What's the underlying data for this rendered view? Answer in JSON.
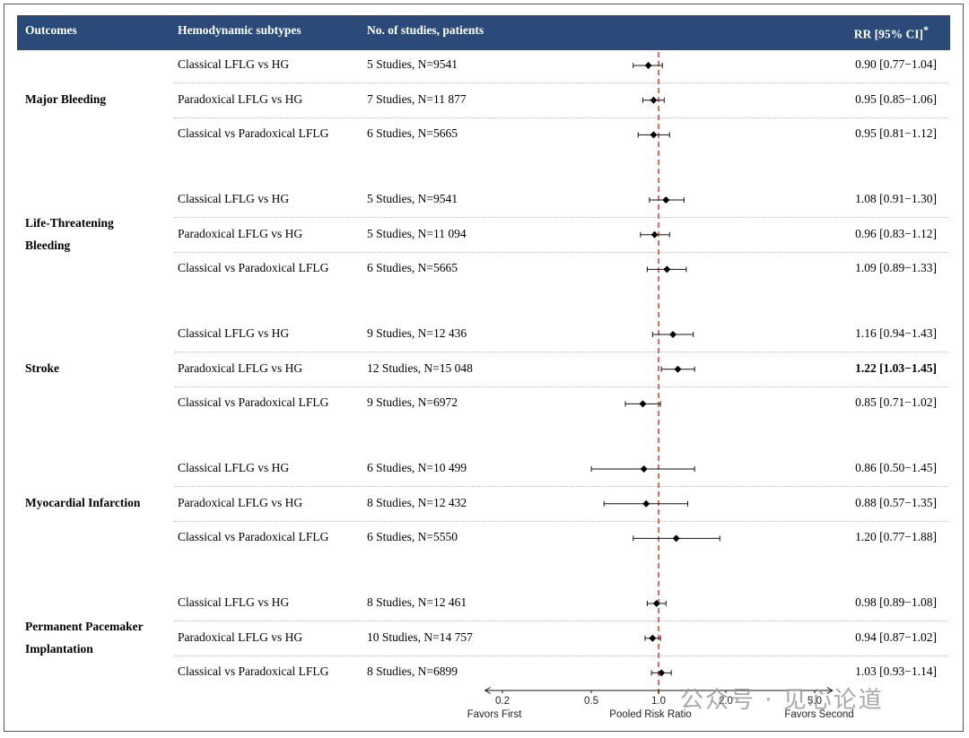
{
  "header": {
    "col_outcomes": "Outcomes",
    "col_subtypes": "Hemodynamic subtypes",
    "col_studies": "No. of studies, patients",
    "col_rr": "RR [95% CI]",
    "col_rr_mark": "*"
  },
  "groups": [
    {
      "outcome_lines": [
        "Major Bleeding"
      ]
    },
    {
      "outcome_lines": [
        "Life-Threatening",
        "Bleeding"
      ]
    },
    {
      "outcome_lines": [
        "Stroke"
      ]
    },
    {
      "outcome_lines": [
        "Myocardial Infarction"
      ]
    },
    {
      "outcome_lines": [
        "Permanent Pacemaker",
        "Implantation"
      ]
    }
  ],
  "rows": [
    {
      "subtype": "Classical LFLG vs HG",
      "studies": "5 Studies, N=9541",
      "rr_text": "0.90 [0.77−1.04]"
    },
    {
      "subtype": "Paradoxical LFLG vs HG",
      "studies": "7 Studies, N=11 877",
      "rr_text": "0.95 [0.85−1.06]"
    },
    {
      "subtype": "Classical vs Paradoxical LFLG",
      "studies": "6 Studies, N=5665",
      "rr_text": "0.95 [0.81−1.12]"
    },
    {
      "subtype": "Classical LFLG vs HG",
      "studies": "5 Studies, N=9541",
      "rr_text": "1.08 [0.91−1.30]"
    },
    {
      "subtype": "Paradoxical LFLG vs HG",
      "studies": "5 Studies, N=11 094",
      "rr_text": "0.96 [0.83−1.12]"
    },
    {
      "subtype": "Classical vs Paradoxical LFLG",
      "studies": "6 Studies, N=5665",
      "rr_text": "1.09 [0.89−1.33]"
    },
    {
      "subtype": "Classical LFLG vs HG",
      "studies": "9 Studies, N=12 436",
      "rr_text": "1.16 [0.94−1.43]"
    },
    {
      "subtype": "Paradoxical LFLG vs HG",
      "studies": "12 Studies, N=15 048",
      "rr_text": "1.22 [1.03−1.45]",
      "bold": true
    },
    {
      "subtype": "Classical vs Paradoxical LFLG",
      "studies": "9 Studies, N=6972",
      "rr_text": "0.85 [0.71−1.02]"
    },
    {
      "subtype": "Classical LFLG vs HG",
      "studies": "6 Studies, N=10 499",
      "rr_text": "0.86 [0.50−1.45]"
    },
    {
      "subtype": "Paradoxical LFLG vs HG",
      "studies": "8 Studies, N=12 432",
      "rr_text": "0.88 [0.57−1.35]"
    },
    {
      "subtype": "Classical vs Paradoxical LFLG",
      "studies": "6 Studies, N=5550",
      "rr_text": "1.20 [0.77−1.88]"
    },
    {
      "subtype": "Classical LFLG vs HG",
      "studies": "8 Studies, N=12 461",
      "rr_text": "0.98 [0.89−1.08]"
    },
    {
      "subtype": "Paradoxical LFLG vs HG",
      "studies": "10 Studies, N=14 757",
      "rr_text": "0.94 [0.87−1.02]"
    },
    {
      "subtype": "Classical vs Paradoxical LFLG",
      "studies": "8 Studies, N=6899",
      "rr_text": "1.03 [0.93−1.14]"
    }
  ],
  "chart_data": {
    "type": "scatter",
    "x_scale": "log",
    "xlim": [
      0.18,
      6.0
    ],
    "reference_line": 1.0,
    "reference_color": "#e0483a",
    "xticks": [
      0.2,
      0.5,
      1.0,
      2.0,
      5.0
    ],
    "xtick_labels": [
      "0.2",
      "0.5",
      "1.0",
      "2.0",
      "5.0"
    ],
    "xlabel": "Pooled Risk Ratio",
    "left_label": "Favors First",
    "right_label": "Favors Second",
    "series": [
      {
        "estimates": [
          0.9,
          0.95,
          0.95,
          1.08,
          0.96,
          1.09,
          1.16,
          1.22,
          0.85,
          0.86,
          0.88,
          1.2,
          0.98,
          0.94,
          1.03
        ],
        "ci_low": [
          0.77,
          0.85,
          0.81,
          0.91,
          0.83,
          0.89,
          0.94,
          1.03,
          0.71,
          0.5,
          0.57,
          0.77,
          0.89,
          0.87,
          0.93
        ],
        "ci_high": [
          1.04,
          1.06,
          1.12,
          1.3,
          1.12,
          1.33,
          1.43,
          1.45,
          1.02,
          1.45,
          1.35,
          1.88,
          1.08,
          1.02,
          1.14
        ]
      }
    ]
  },
  "header_color": "#2b4a78",
  "watermark": "公众号 · 见心论道"
}
